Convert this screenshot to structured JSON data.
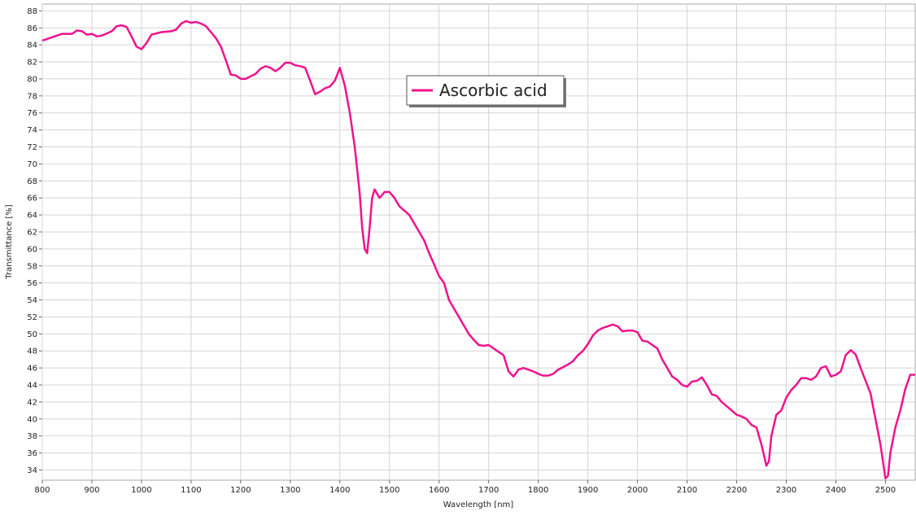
{
  "chart_data": {
    "type": "line",
    "xlabel": "Wavelength [nm]",
    "ylabel": "Transmittance [%]",
    "x": [
      800,
      820,
      840,
      860,
      870,
      880,
      890,
      900,
      910,
      920,
      940,
      950,
      960,
      970,
      980,
      990,
      1000,
      1010,
      1020,
      1040,
      1060,
      1070,
      1080,
      1090,
      1100,
      1110,
      1120,
      1130,
      1140,
      1150,
      1160,
      1170,
      1180,
      1190,
      1200,
      1210,
      1220,
      1230,
      1240,
      1250,
      1260,
      1270,
      1280,
      1290,
      1300,
      1310,
      1320,
      1330,
      1340,
      1350,
      1360,
      1370,
      1380,
      1390,
      1400,
      1410,
      1420,
      1430,
      1440,
      1445,
      1450,
      1455,
      1460,
      1465,
      1470,
      1480,
      1490,
      1500,
      1510,
      1520,
      1530,
      1540,
      1550,
      1560,
      1570,
      1580,
      1590,
      1600,
      1610,
      1620,
      1630,
      1640,
      1650,
      1660,
      1670,
      1680,
      1690,
      1700,
      1710,
      1720,
      1730,
      1740,
      1750,
      1760,
      1770,
      1780,
      1790,
      1800,
      1810,
      1820,
      1830,
      1840,
      1850,
      1860,
      1870,
      1880,
      1890,
      1900,
      1910,
      1920,
      1930,
      1940,
      1950,
      1960,
      1970,
      1980,
      1990,
      2000,
      2010,
      2020,
      2030,
      2040,
      2050,
      2060,
      2070,
      2080,
      2090,
      2100,
      2110,
      2120,
      2130,
      2140,
      2150,
      2160,
      2170,
      2180,
      2190,
      2200,
      2210,
      2220,
      2230,
      2240,
      2250,
      2260,
      2265,
      2270,
      2280,
      2290,
      2300,
      2310,
      2320,
      2330,
      2340,
      2350,
      2360,
      2370,
      2380,
      2390,
      2400,
      2410,
      2420,
      2430,
      2440,
      2450,
      2460,
      2470,
      2480,
      2490,
      2495,
      2500,
      2505,
      2510,
      2520,
      2530,
      2540,
      2550,
      2560
    ],
    "series": [
      {
        "name": "Ascorbic acid",
        "color": "#f0128e",
        "values": [
          84.5,
          84.9,
          85.3,
          85.3,
          85.7,
          85.6,
          85.2,
          85.3,
          85.0,
          85.1,
          85.6,
          86.2,
          86.3,
          86.1,
          85.0,
          83.8,
          83.5,
          84.2,
          85.2,
          85.5,
          85.6,
          85.8,
          86.5,
          86.8,
          86.6,
          86.7,
          86.5,
          86.2,
          85.5,
          84.8,
          83.8,
          82.2,
          80.5,
          80.4,
          80.0,
          80.0,
          80.3,
          80.6,
          81.2,
          81.5,
          81.3,
          80.9,
          81.3,
          81.9,
          81.9,
          81.6,
          81.5,
          81.3,
          79.8,
          78.2,
          78.5,
          78.9,
          79.1,
          79.8,
          81.3,
          79.2,
          76.0,
          72.0,
          66.5,
          62.5,
          60.0,
          59.5,
          62.5,
          66.0,
          67.0,
          66.0,
          66.7,
          66.7,
          66.0,
          65.0,
          64.5,
          64.0,
          63.0,
          62.0,
          61.0,
          59.5,
          58.2,
          56.8,
          56.0,
          54.0,
          53.0,
          52.0,
          51.0,
          50.0,
          49.3,
          48.7,
          48.6,
          48.7,
          48.3,
          47.9,
          47.5,
          45.6,
          45.0,
          45.8,
          46.0,
          45.8,
          45.6,
          45.3,
          45.1,
          45.1,
          45.3,
          45.8,
          46.1,
          46.4,
          46.8,
          47.5,
          48.0,
          48.8,
          49.8,
          50.4,
          50.7,
          50.9,
          51.1,
          50.9,
          50.3,
          50.4,
          50.4,
          50.2,
          49.2,
          49.1,
          48.7,
          48.3,
          47.0,
          46.0,
          45.0,
          44.6,
          44.0,
          43.8,
          44.4,
          44.5,
          44.9,
          44.0,
          42.9,
          42.7,
          42.0,
          41.5,
          41.0,
          40.5,
          40.3,
          40.0,
          39.3,
          39.0,
          37.0,
          34.5,
          35.0,
          38.0,
          40.5,
          41.0,
          42.5,
          43.4,
          44.0,
          44.8,
          44.8,
          44.6,
          45.0,
          46.0,
          46.2,
          45.0,
          45.2,
          45.6,
          47.5,
          48.1,
          47.6,
          46.0,
          44.5,
          43.0,
          40.0,
          37.0,
          35.0,
          33.0,
          33.3,
          36.0,
          39.0,
          41.0,
          43.5,
          45.2,
          45.2
        ]
      }
    ],
    "xlim": [
      800,
      2560
    ],
    "ylim": [
      32.8,
      88.8
    ],
    "xticks": [
      800,
      900,
      1000,
      1100,
      1200,
      1300,
      1400,
      1500,
      1600,
      1700,
      1800,
      1900,
      2000,
      2100,
      2200,
      2300,
      2400,
      2500
    ],
    "yticks": [
      34,
      36,
      38,
      40,
      42,
      44,
      46,
      48,
      50,
      52,
      54,
      56,
      58,
      60,
      62,
      64,
      66,
      68,
      70,
      72,
      74,
      76,
      78,
      80,
      82,
      84,
      86,
      88
    ],
    "grid": true
  }
}
